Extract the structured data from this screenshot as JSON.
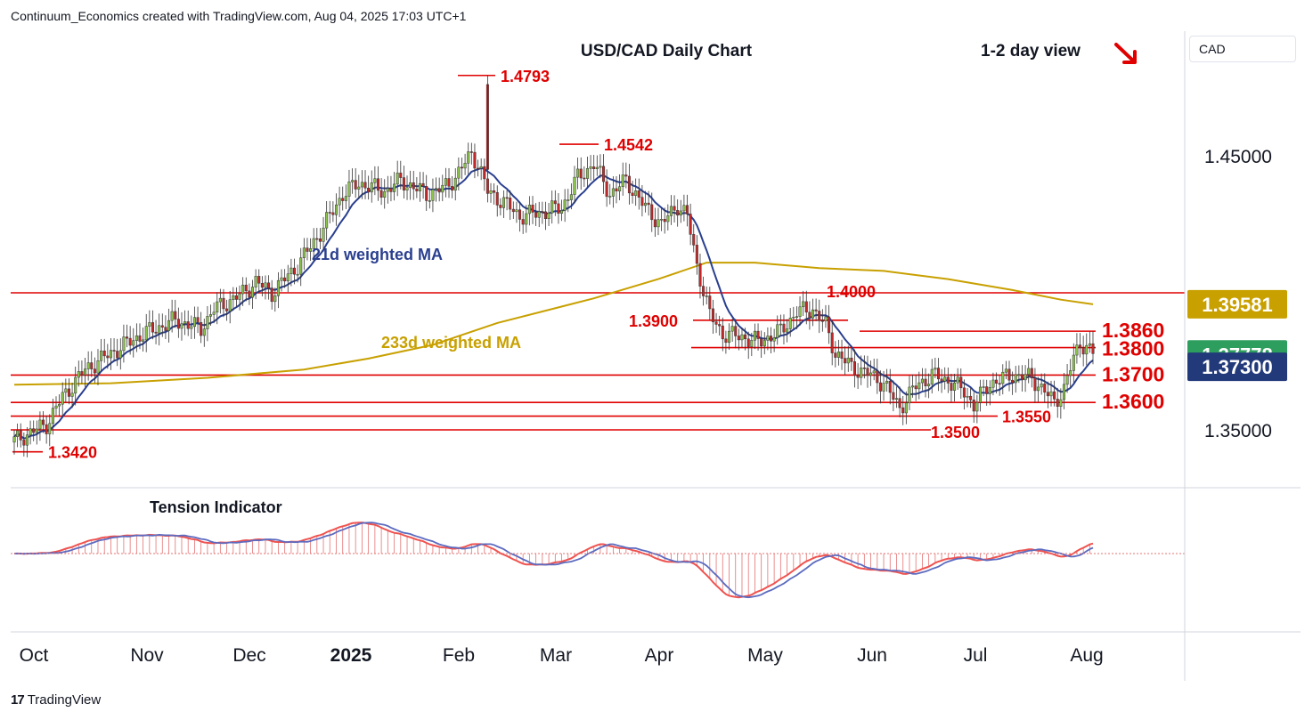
{
  "header": "Continuum_Economics created with TradingView.com, Aug 04, 2025 17:03 UTC+1",
  "currency_label": "CAD",
  "footer_brand": "TradingView",
  "chart_data": {
    "type": "candlestick",
    "title": "USD/CAD Daily Chart",
    "subtitle": "1-2 day view",
    "view_direction": "down",
    "y_range": [
      1.335,
      1.495
    ],
    "y_ticks": [
      "1.45000",
      "1.35000"
    ],
    "x_ticks": [
      "Oct",
      "Nov",
      "Dec",
      "2025",
      "Feb",
      "Mar",
      "Apr",
      "May",
      "Jun",
      "Jul",
      "Aug"
    ],
    "colors": {
      "up": "#26a69a",
      "down": "#ef5350",
      "levels": "#e00000",
      "ma21": "#2a3f8f",
      "ma233": "#c8a000"
    },
    "peak_labels": [
      {
        "text": "1.4793",
        "value": 1.4793
      },
      {
        "text": "1.4542",
        "value": 1.4542
      },
      {
        "text": "1.4000",
        "value": 1.4
      },
      {
        "text": "1.3900",
        "value": 1.39
      },
      {
        "text": "1.3550",
        "value": 1.355
      },
      {
        "text": "1.3500",
        "value": 1.35
      },
      {
        "text": "1.3420",
        "value": 1.342
      }
    ],
    "levels": [
      {
        "label": "1.3860",
        "value": 1.386
      },
      {
        "label": "1.3800",
        "value": 1.38
      },
      {
        "label": "1.3700",
        "value": 1.37
      },
      {
        "label": "1.3600",
        "value": 1.36
      }
    ],
    "series": [
      {
        "name": "21d weighted MA",
        "last": "1.37300",
        "color": "#2a3f8f"
      },
      {
        "name": "233d weighted MA",
        "last": "1.39581",
        "color": "#c8a000"
      }
    ],
    "last_price": "1.37778",
    "indicator": {
      "name": "Tension Indicator"
    }
  }
}
